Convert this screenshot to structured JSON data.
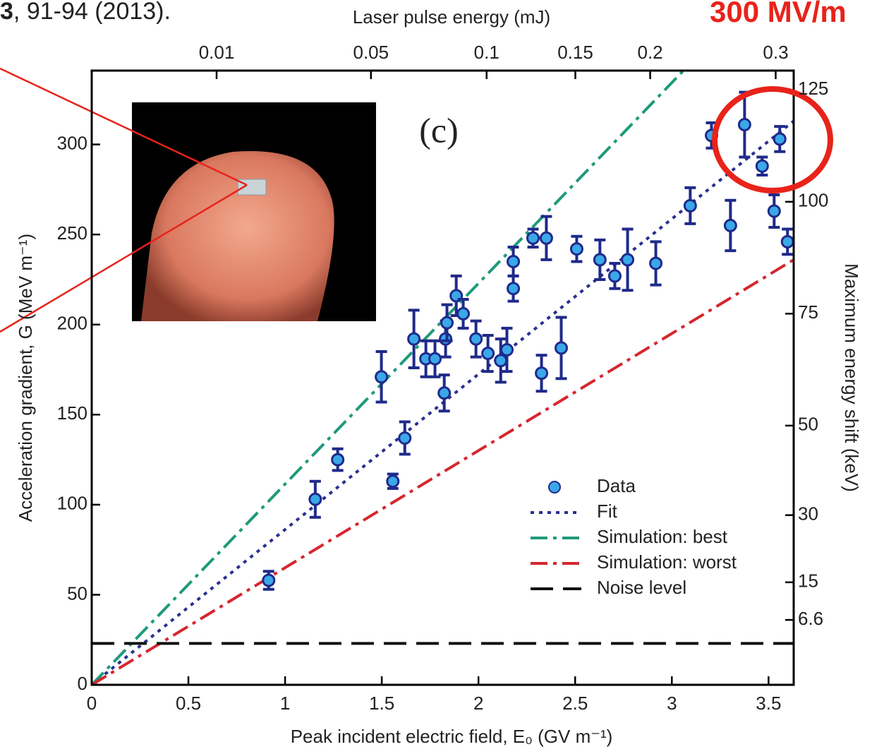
{
  "header": {
    "citation_bold": "3",
    "citation": ", 91-94 (2013).",
    "highlight": "300 MV/m"
  },
  "chart_data": {
    "type": "scatter",
    "annotation": "(c)",
    "xlabel": "Peak incident electric field, E₀ (GV m⁻¹)",
    "ylabel": "Acceleration gradient, G (MeV m⁻¹)",
    "x2label": "Laser pulse energy (mJ)",
    "y2label": "Maximum energy shift (keV)",
    "xlim": [
      0,
      3.63
    ],
    "xticks": [
      0,
      0.5,
      1,
      1.5,
      2,
      2.5,
      3,
      3.5
    ],
    "ylim": [
      0,
      341
    ],
    "yticks": [
      0,
      50,
      100,
      150,
      200,
      250,
      300
    ],
    "x2lim": [
      0,
      0.316
    ],
    "x2scale": "sqrt",
    "x2ticks": [
      0.01,
      0.05,
      0.1,
      0.15,
      0.2,
      0.3
    ],
    "y2lim": [
      -7.9,
      129.3
    ],
    "y2ticks": [
      6.6,
      15,
      30,
      50,
      75,
      100,
      125
    ],
    "legend": "lower right",
    "series": [
      {
        "name": "Data",
        "type": "scatter",
        "color": "#3aa8e8",
        "edge": "#1f2a8a",
        "x": [
          0.915,
          1.156,
          1.272,
          1.498,
          1.557,
          1.619,
          1.666,
          1.728,
          1.775,
          1.823,
          1.83,
          1.837,
          1.885,
          1.921,
          1.987,
          2.049,
          2.115,
          2.147,
          2.18,
          2.18,
          2.282,
          2.326,
          2.351,
          2.428,
          2.508,
          2.628,
          2.705,
          2.771,
          2.917,
          3.095,
          3.205,
          3.303,
          3.376,
          3.467,
          3.529,
          3.558,
          3.598
        ],
        "values": [
          58,
          103,
          125,
          171,
          113,
          137,
          192,
          181,
          181,
          162,
          192,
          201,
          216,
          206,
          192,
          184,
          180,
          186,
          220,
          235,
          248,
          173,
          248,
          187,
          242,
          236,
          227,
          236,
          234,
          266,
          305,
          255,
          311,
          288,
          263,
          303,
          246
        ],
        "errors": [
          5,
          10,
          6,
          14,
          4,
          9,
          16,
          10,
          10,
          10,
          10,
          10,
          11,
          8,
          10,
          10,
          12,
          12,
          7,
          8,
          5,
          10,
          12,
          17,
          7,
          11,
          7,
          17,
          12,
          10,
          7,
          14,
          18,
          5,
          9,
          7,
          7
        ]
      },
      {
        "name": "Fit",
        "type": "line",
        "color": "#2a2f8f",
        "dash": "dotted",
        "x": [
          0,
          3.63
        ],
        "values": [
          0,
          313
        ]
      },
      {
        "name": "Simulation: best",
        "type": "line",
        "color": "#1e9a7a",
        "dash": "dashdot",
        "x": [
          0,
          3.06
        ],
        "values": [
          0,
          341
        ]
      },
      {
        "name": "Simulation: worst",
        "type": "line",
        "color": "#d6262f",
        "dash": "dashdot",
        "x": [
          0,
          3.63
        ],
        "values": [
          0,
          236
        ]
      },
      {
        "name": "Noise level",
        "type": "line",
        "color": "#111111",
        "dash": "dashed",
        "x": [
          0,
          3.63
        ],
        "values": [
          23,
          23
        ]
      }
    ]
  }
}
